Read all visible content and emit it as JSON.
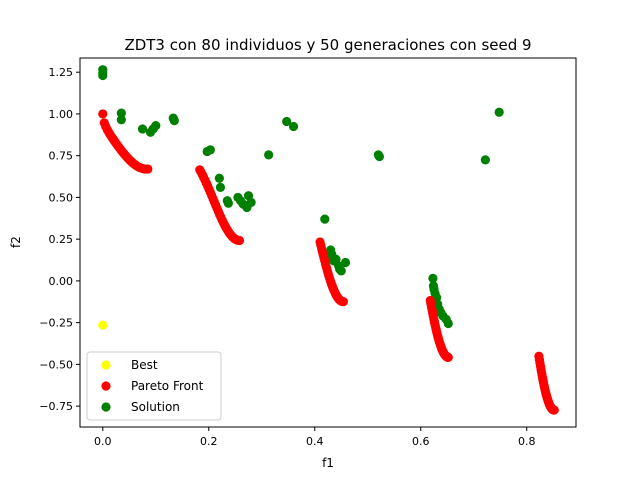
{
  "chart_data": {
    "type": "scatter",
    "title": "ZDT3 con 80 individuos y 50 generaciones con seed 9",
    "xlabel": "f1",
    "ylabel": "f2",
    "xlim": [
      -0.043,
      0.893
    ],
    "ylim": [
      -0.875,
      1.335
    ],
    "xticks": [
      0.0,
      0.2,
      0.4,
      0.6,
      0.8
    ],
    "xtick_labels": [
      "0.0",
      "0.2",
      "0.4",
      "0.6",
      "0.8"
    ],
    "yticks": [
      -0.75,
      -0.5,
      -0.25,
      0.0,
      0.25,
      0.5,
      0.75,
      1.0,
      1.25
    ],
    "ytick_labels": [
      "−0.75",
      "−0.50",
      "−0.25",
      "0.00",
      "0.25",
      "0.50",
      "0.75",
      "1.00",
      "1.25"
    ],
    "grid": false,
    "legend": "lower-left",
    "series": [
      {
        "name": "Best",
        "color": "#ffff00",
        "points": [
          [
            0.0,
            -0.265
          ]
        ]
      },
      {
        "name": "Pareto Front",
        "color": "#ff0000",
        "segments": [
          {
            "x0": 0.0,
            "x1": 0.085
          },
          {
            "x0": 0.183,
            "x1": 0.258
          },
          {
            "x0": 0.41,
            "x1": 0.454
          },
          {
            "x0": 0.618,
            "x1": 0.652
          },
          {
            "x0": 0.823,
            "x1": 0.852
          }
        ],
        "formula": "1 - sqrt(x) - x*sin(10*pi*x)"
      },
      {
        "name": "Solution",
        "color": "#008000",
        "points": [
          [
            0.0,
            1.265
          ],
          [
            0.0,
            1.245
          ],
          [
            0.0,
            1.23
          ],
          [
            0.035,
            1.005
          ],
          [
            0.035,
            0.965
          ],
          [
            0.075,
            0.91
          ],
          [
            0.09,
            0.89
          ],
          [
            0.095,
            0.91
          ],
          [
            0.1,
            0.93
          ],
          [
            0.133,
            0.975
          ],
          [
            0.135,
            0.96
          ],
          [
            0.197,
            0.775
          ],
          [
            0.203,
            0.785
          ],
          [
            0.22,
            0.615
          ],
          [
            0.222,
            0.56
          ],
          [
            0.235,
            0.48
          ],
          [
            0.237,
            0.465
          ],
          [
            0.255,
            0.5
          ],
          [
            0.26,
            0.48
          ],
          [
            0.265,
            0.46
          ],
          [
            0.272,
            0.44
          ],
          [
            0.275,
            0.51
          ],
          [
            0.28,
            0.47
          ],
          [
            0.313,
            0.755
          ],
          [
            0.347,
            0.955
          ],
          [
            0.36,
            0.925
          ],
          [
            0.419,
            0.37
          ],
          [
            0.43,
            0.185
          ],
          [
            0.432,
            0.16
          ],
          [
            0.433,
            0.14
          ],
          [
            0.436,
            0.12
          ],
          [
            0.44,
            0.13
          ],
          [
            0.445,
            0.09
          ],
          [
            0.447,
            0.07
          ],
          [
            0.45,
            0.06
          ],
          [
            0.458,
            0.11
          ],
          [
            0.52,
            0.755
          ],
          [
            0.522,
            0.745
          ],
          [
            0.623,
            0.015
          ],
          [
            0.624,
            -0.03
          ],
          [
            0.625,
            -0.05
          ],
          [
            0.627,
            -0.075
          ],
          [
            0.63,
            -0.1
          ],
          [
            0.632,
            -0.14
          ],
          [
            0.635,
            -0.17
          ],
          [
            0.638,
            -0.19
          ],
          [
            0.642,
            -0.21
          ],
          [
            0.648,
            -0.23
          ],
          [
            0.652,
            -0.255
          ],
          [
            0.722,
            0.725
          ],
          [
            0.748,
            1.01
          ]
        ]
      }
    ]
  }
}
